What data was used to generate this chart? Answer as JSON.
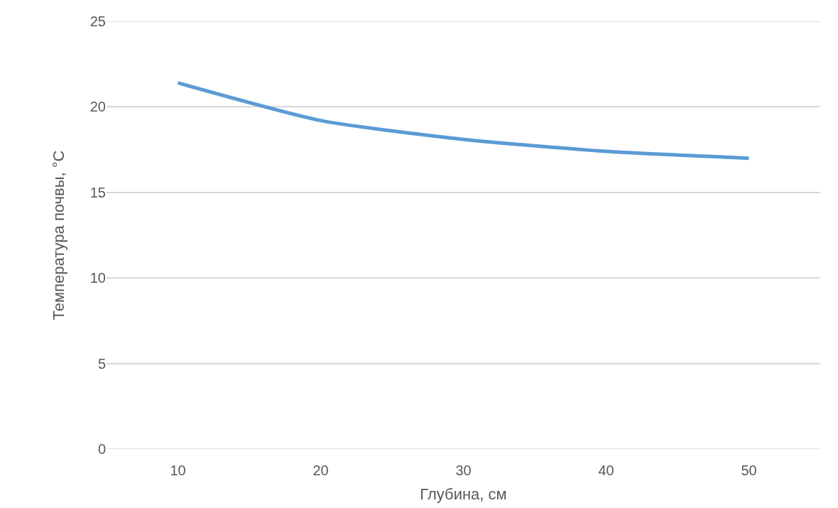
{
  "chart_data": {
    "type": "line",
    "xlabel": "Глубина, см",
    "ylabel": "Температура почвы, °C",
    "categories": [
      "10",
      "20",
      "30",
      "40",
      "50"
    ],
    "series": [
      {
        "color": "#5b9bd5",
        "values": [
          21.4,
          19.2,
          18.1,
          17.4,
          17.0
        ]
      }
    ],
    "ylim": [
      0,
      25
    ],
    "yticks": [
      0,
      5,
      10,
      15,
      20,
      25
    ],
    "grid": "y",
    "marker": "none",
    "line_style": "solid"
  }
}
